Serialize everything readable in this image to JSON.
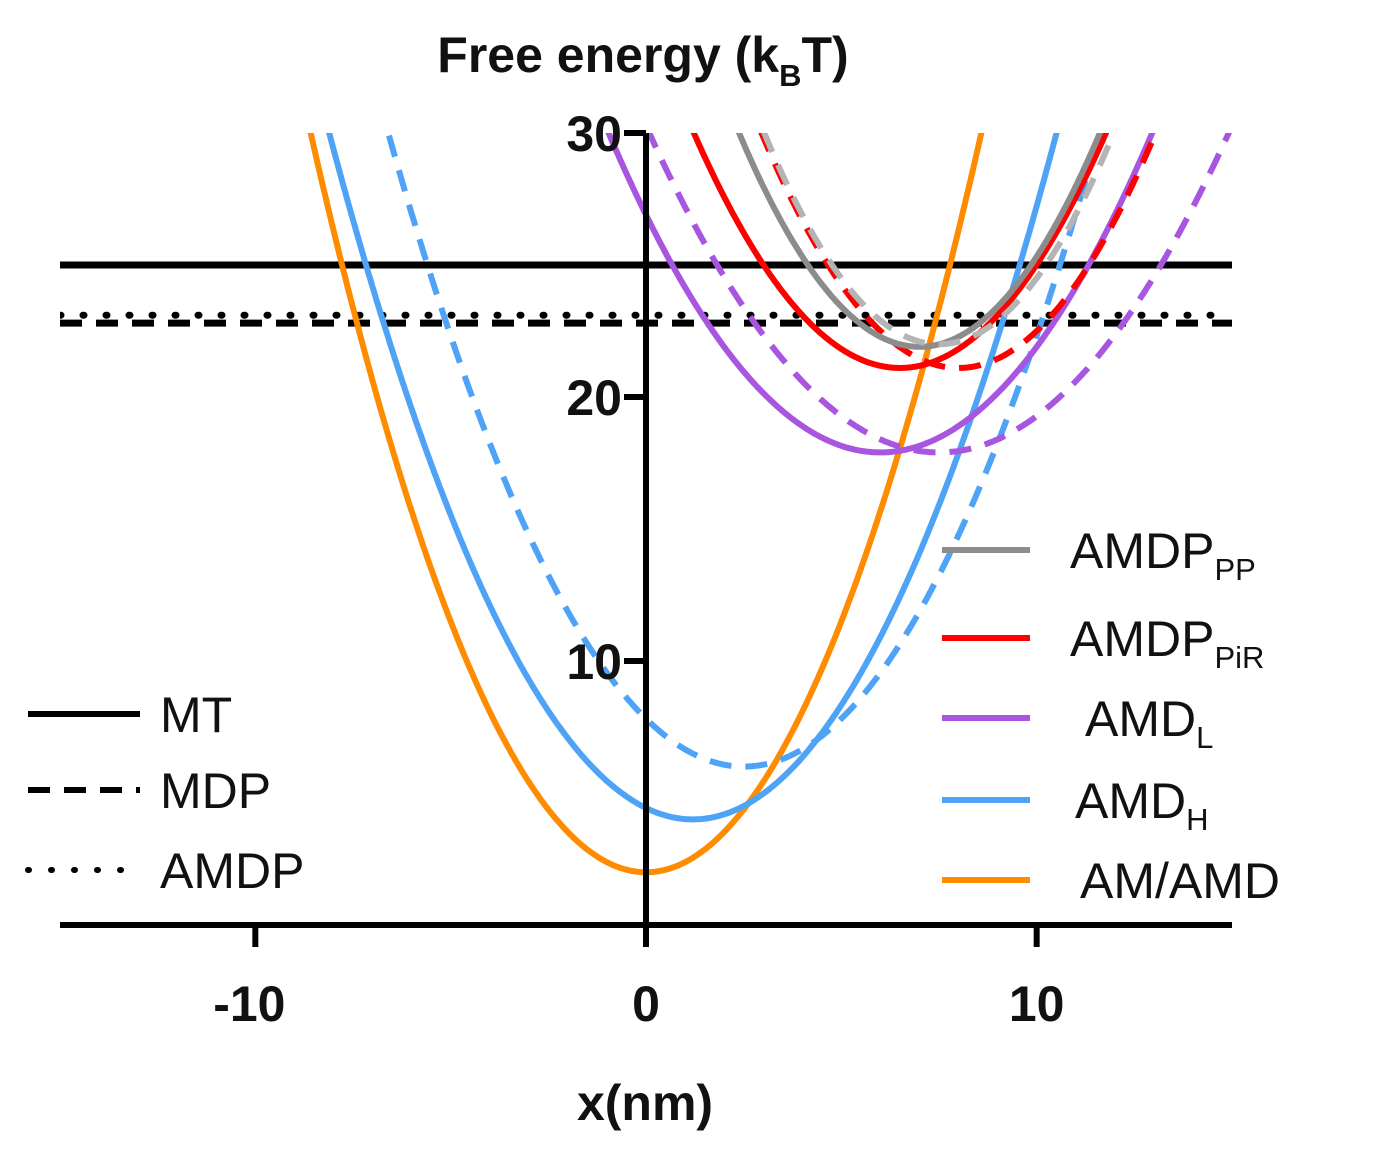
{
  "chart_data": {
    "type": "line",
    "title": "Free energy (kBT)",
    "title_parts": {
      "main": "Free energy (k",
      "subscript": "B",
      "end": "T)"
    },
    "xlabel": "x(nm)",
    "ylabel": "Free energy (kBT)",
    "xlim": [
      -15,
      15
    ],
    "ylim": [
      0,
      30
    ],
    "xticks": [
      -10,
      0,
      10
    ],
    "yticks": [
      10,
      20,
      30
    ],
    "xtick_labels": [
      "-10",
      "0",
      "10"
    ],
    "ytick_labels": [
      "10",
      "20",
      "30"
    ],
    "grid": false,
    "left_legend_placement": "bottom-left",
    "right_legend_placement": "center-right",
    "left_legend": [
      {
        "label": "MT",
        "style": "solid",
        "color": "#000000"
      },
      {
        "label": "MDP",
        "style": "dashed",
        "color": "#000000"
      },
      {
        "label": "AMDP",
        "style": "dotted",
        "color": "#000000"
      }
    ],
    "right_legend": [
      {
        "label": "AMDP",
        "subscript": "PP",
        "style": "solid",
        "color": "#8c8c8c"
      },
      {
        "label": "AMDP",
        "subscript": "PiR",
        "style": "solid",
        "color": "#ff0000"
      },
      {
        "label": "AMD",
        "subscript": "L",
        "style": "solid",
        "color": "#a855e0"
      },
      {
        "label": "AMD",
        "subscript": "H",
        "style": "solid",
        "color": "#4fa3f7"
      },
      {
        "label": "AM/AMD",
        "subscript": "",
        "style": "solid",
        "color": "#ff8c00"
      }
    ],
    "series": [
      {
        "name": "MT",
        "kind": "constant",
        "value": 25.0,
        "style": "solid",
        "color": "#000000"
      },
      {
        "name": "MDP",
        "kind": "constant",
        "value": 22.8,
        "style": "dashed",
        "color": "#000000"
      },
      {
        "name": "AMDP",
        "kind": "constant",
        "value": 23.1,
        "style": "dotted",
        "color": "#000000"
      },
      {
        "name": "AM/AMD",
        "kind": "parabola",
        "center": 0.0,
        "min": 2.0,
        "k": 0.38,
        "style": "solid",
        "color": "#ff8c00"
      },
      {
        "name": "AMD_H",
        "kind": "parabola",
        "center": 1.2,
        "min": 4.0,
        "k": 0.3,
        "style": "solid",
        "color": "#4fa3f7"
      },
      {
        "name": "AMD_H (dashed)",
        "kind": "parabola",
        "center": 2.5,
        "min": 6.0,
        "k": 0.29,
        "style": "dashed",
        "color": "#4fa3f7"
      },
      {
        "name": "AMD_L",
        "kind": "parabola",
        "center": 6.0,
        "min": 17.9,
        "k": 0.25,
        "style": "solid",
        "color": "#a855e0"
      },
      {
        "name": "AMD_L (dashed)",
        "kind": "parabola",
        "center": 7.5,
        "min": 17.9,
        "k": 0.22,
        "style": "dashed",
        "color": "#a855e0"
      },
      {
        "name": "AMDP_PiR",
        "kind": "parabola",
        "center": 6.5,
        "min": 21.1,
        "k": 0.32,
        "style": "solid",
        "color": "#ff0000"
      },
      {
        "name": "AMDP_PiR (dashed)",
        "kind": "parabola",
        "center": 8.0,
        "min": 21.1,
        "k": 0.35,
        "style": "dashed",
        "color": "#ff0000"
      },
      {
        "name": "AMDP_PP",
        "kind": "parabola",
        "center": 7.0,
        "min": 21.9,
        "k": 0.38,
        "style": "solid",
        "color": "#8c8c8c"
      },
      {
        "name": "AMDP_PP (dashed)",
        "kind": "parabola",
        "center": 7.5,
        "min": 22.0,
        "k": 0.4,
        "style": "dashed",
        "color": "#b4b4b4"
      }
    ]
  }
}
